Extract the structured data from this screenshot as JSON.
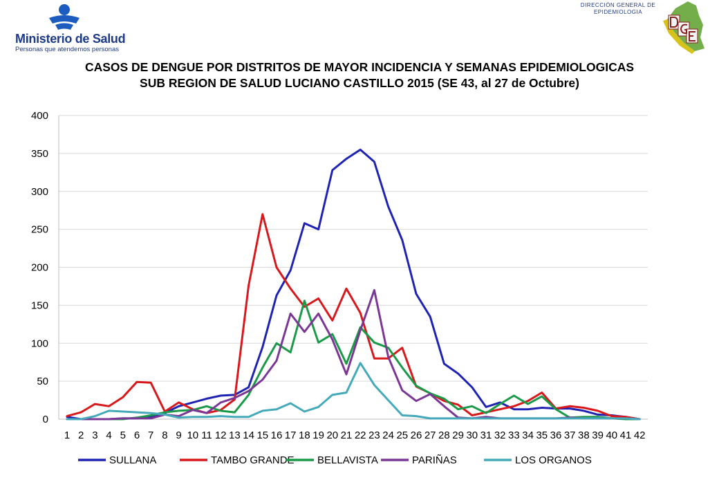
{
  "header": {
    "org_name": "Ministerio de Salud",
    "org_tagline": "Personas que atendemos personas",
    "dept_line1": "DIRECCIÓN GENERAL DE",
    "dept_line2": "EPIDEMIOLOGIA"
  },
  "title_line1": "CASOS DE DENGUE POR DISTRITOS DE MAYOR INCIDENCIA Y SEMANAS EPIDEMIOLOGICAS",
  "title_line2": "SUB REGION DE SALUD LUCIANO CASTILLO 2015 (SE 43, al 27 de Octubre)",
  "chart_data": {
    "type": "line",
    "title": "CASOS DE DENGUE POR DISTRITOS DE MAYOR INCIDENCIA Y SEMANAS EPIDEMIOLOGICAS SUB REGION DE SALUD LUCIANO CASTILLO 2015 (SE 43, al 27 de Octubre)",
    "xlabel": "",
    "ylabel": "",
    "ylim": [
      0,
      400
    ],
    "yticks": [
      0,
      50,
      100,
      150,
      200,
      250,
      300,
      350,
      400
    ],
    "categories": [
      "1",
      "2",
      "3",
      "4",
      "5",
      "6",
      "7",
      "8",
      "9",
      "10",
      "11",
      "12",
      "13",
      "14",
      "15",
      "16",
      "17",
      "18",
      "19",
      "20",
      "21",
      "22",
      "23",
      "24",
      "25",
      "26",
      "27",
      "28",
      "29",
      "30",
      "31",
      "32",
      "33",
      "34",
      "35",
      "36",
      "37",
      "38",
      "39",
      "40",
      "41",
      "42"
    ],
    "grid": "horizontal",
    "legend_position": "bottom",
    "series": [
      {
        "name": "SULLANA",
        "color": "#1f23b3",
        "values": [
          3,
          0,
          0,
          0,
          1,
          1,
          3,
          8,
          17,
          22,
          27,
          31,
          32,
          42,
          95,
          163,
          196,
          258,
          250,
          328,
          343,
          355,
          339,
          280,
          236,
          165,
          135,
          73,
          60,
          42,
          16,
          22,
          13,
          13,
          15,
          14,
          14,
          11,
          6,
          5,
          3,
          0
        ]
      },
      {
        "name": "TAMBO GRANDE",
        "color": "#d9181b",
        "values": [
          4,
          9,
          20,
          17,
          29,
          49,
          48,
          10,
          22,
          13,
          8,
          12,
          26,
          176,
          270,
          200,
          172,
          148,
          159,
          130,
          172,
          140,
          80,
          80,
          94,
          43,
          34,
          24,
          19,
          5,
          9,
          13,
          17,
          24,
          35,
          14,
          17,
          15,
          11,
          4,
          3,
          0
        ]
      },
      {
        "name": "BELLAVISTA",
        "color": "#1a9a48",
        "values": [
          0,
          0,
          0,
          0,
          0,
          2,
          5,
          9,
          11,
          12,
          17,
          11,
          9,
          32,
          68,
          100,
          88,
          156,
          101,
          112,
          73,
          121,
          101,
          94,
          68,
          44,
          34,
          27,
          13,
          17,
          8,
          20,
          31,
          20,
          30,
          13,
          2,
          3,
          3,
          1,
          0,
          0
        ]
      },
      {
        "name": "PARIÑAS",
        "color": "#7b3795",
        "values": [
          0,
          0,
          0,
          0,
          1,
          1,
          1,
          6,
          4,
          12,
          8,
          22,
          28,
          37,
          52,
          77,
          139,
          115,
          139,
          105,
          59,
          117,
          170,
          82,
          38,
          24,
          33,
          17,
          2,
          1,
          3,
          1,
          1,
          1,
          1,
          1,
          2,
          1,
          1,
          1,
          1,
          0
        ]
      },
      {
        "name": "LOS ORGANOS",
        "color": "#45a9ba",
        "values": [
          0,
          0,
          4,
          11,
          10,
          9,
          8,
          6,
          2,
          3,
          3,
          4,
          3,
          3,
          11,
          13,
          21,
          10,
          16,
          32,
          35,
          74,
          45,
          25,
          5,
          4,
          1,
          1,
          1,
          1,
          1,
          1,
          1,
          1,
          1,
          1,
          1,
          1,
          1,
          1,
          1,
          0
        ]
      }
    ]
  }
}
